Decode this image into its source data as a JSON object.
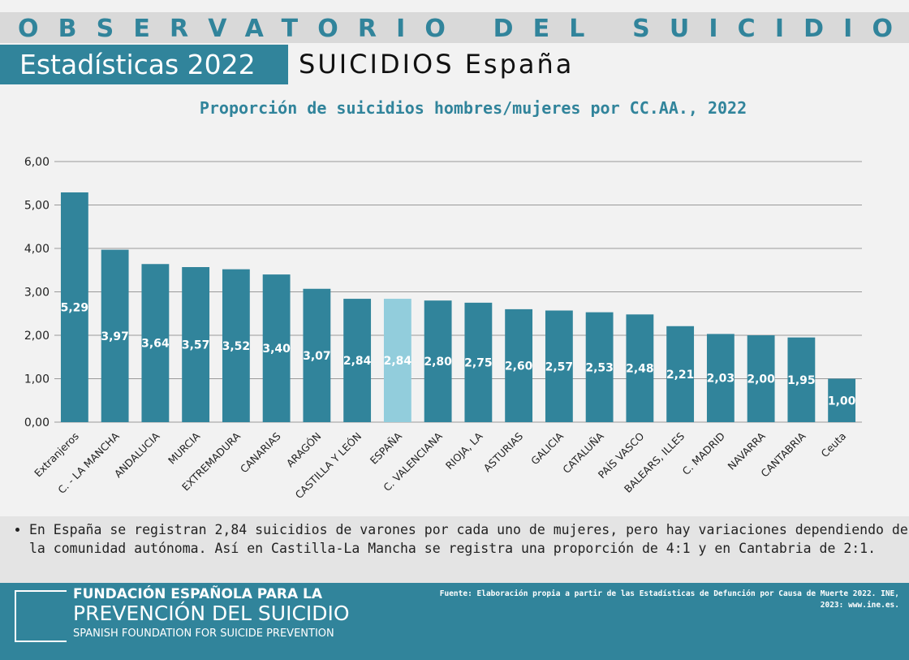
{
  "header": {
    "banner": "OBSERVATORIO DEL SUICIDIO",
    "section": "Estadísticas 2022",
    "subtitle": "SUICIDIOS España"
  },
  "chart_data": {
    "type": "bar",
    "title": "Proporción de suicidios hombres/mujeres por CC.AA., 2022",
    "categories": [
      "Extranjeros",
      "C. - LA MANCHA",
      "ANDALUCIA",
      "MURCIA",
      "EXTREMADURA",
      "CANARIAS",
      "ARAGÓN",
      "CASTILLA Y LEÓN",
      "ESPAÑA",
      "C. VALENCIANA",
      "RIOJA, LA",
      "ASTURIAS",
      "GALICIA",
      "CATALUÑA",
      "PAÍS VASCO",
      "BALEARS, ILLES",
      "C. MADRID",
      "NAVARRA",
      "CANTABRIA",
      "Ceuta"
    ],
    "values": [
      5.29,
      3.97,
      3.64,
      3.57,
      3.52,
      3.4,
      3.07,
      2.84,
      2.84,
      2.8,
      2.75,
      2.6,
      2.57,
      2.53,
      2.48,
      2.21,
      2.03,
      2.0,
      1.95,
      1.0
    ],
    "value_labels": [
      "5,29",
      "3,97",
      "3,64",
      "3,57",
      "3,52",
      "3,40",
      "3,07",
      "2,84",
      "2,84",
      "2,80",
      "2,75",
      "2,60",
      "2,57",
      "2,53",
      "2,48",
      "2,21",
      "2,03",
      "2,00",
      "1,95",
      "1,00"
    ],
    "colors": [
      "#31849b",
      "#31849b",
      "#31849b",
      "#31849b",
      "#31849b",
      "#31849b",
      "#31849b",
      "#31849b",
      "#92cddc",
      "#31849b",
      "#31849b",
      "#31849b",
      "#31849b",
      "#31849b",
      "#31849b",
      "#31849b",
      "#31849b",
      "#31849b",
      "#31849b",
      "#31849b"
    ],
    "ylim": [
      0,
      6
    ],
    "yticks": [
      {
        "value": 0,
        "label": "0,00"
      },
      {
        "value": 1,
        "label": "1,00"
      },
      {
        "value": 2,
        "label": "2,00"
      },
      {
        "value": 3,
        "label": "3,00"
      },
      {
        "value": 4,
        "label": "4,00"
      },
      {
        "value": 5,
        "label": "5,00"
      },
      {
        "value": 6,
        "label": "6,00"
      }
    ],
    "grid": true
  },
  "note": "En España se registran 2,84 suicidios de varones por cada uno de mujeres, pero hay variaciones dependiendo de la comunidad autónoma. Así en Castilla-La Mancha se registra una proporción de 4:1 y en Cantabria de 2:1.",
  "footer": {
    "logo_line1": "FUNDACIÓN ESPAÑOLA PARA LA",
    "logo_line2": "PREVENCIÓN DEL SUICIDIO",
    "logo_line3": "SPANISH FOUNDATION FOR SUICIDE PREVENTION",
    "source": "Fuente: Elaboración propia a partir de las Estadísticas de Defunción por Causa de Muerte 2022. INE, 2023: www.ine.es."
  }
}
